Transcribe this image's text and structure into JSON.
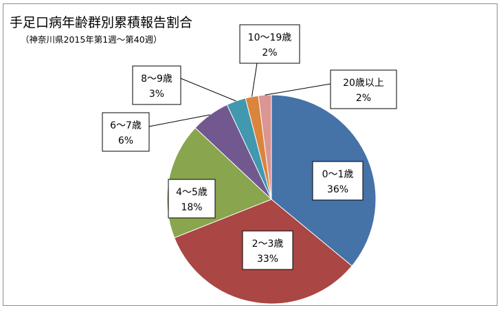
{
  "chart_data": {
    "type": "pie",
    "title": "手足口病年齢群別累積報告割合",
    "subtitle": "（神奈川県2015年第1週～第40週）",
    "slices": [
      {
        "label": "0～1歳",
        "value": 36,
        "pct_text": "36%",
        "color": "#4572a7"
      },
      {
        "label": "2～3歳",
        "value": 33,
        "pct_text": "33%",
        "color": "#aa4643"
      },
      {
        "label": "4～5歳",
        "value": 18,
        "pct_text": "18%",
        "color": "#89a54e"
      },
      {
        "label": "6～7歳",
        "value": 6,
        "pct_text": "6%",
        "color": "#71588f"
      },
      {
        "label": "8～9歳",
        "value": 3,
        "pct_text": "3%",
        "color": "#4198af"
      },
      {
        "label": "10～19歳",
        "value": 2,
        "pct_text": "2%",
        "color": "#db843d"
      },
      {
        "label": "20歳以上",
        "value": 2,
        "pct_text": "2%",
        "color": "#d99694"
      }
    ],
    "legend": "none"
  }
}
